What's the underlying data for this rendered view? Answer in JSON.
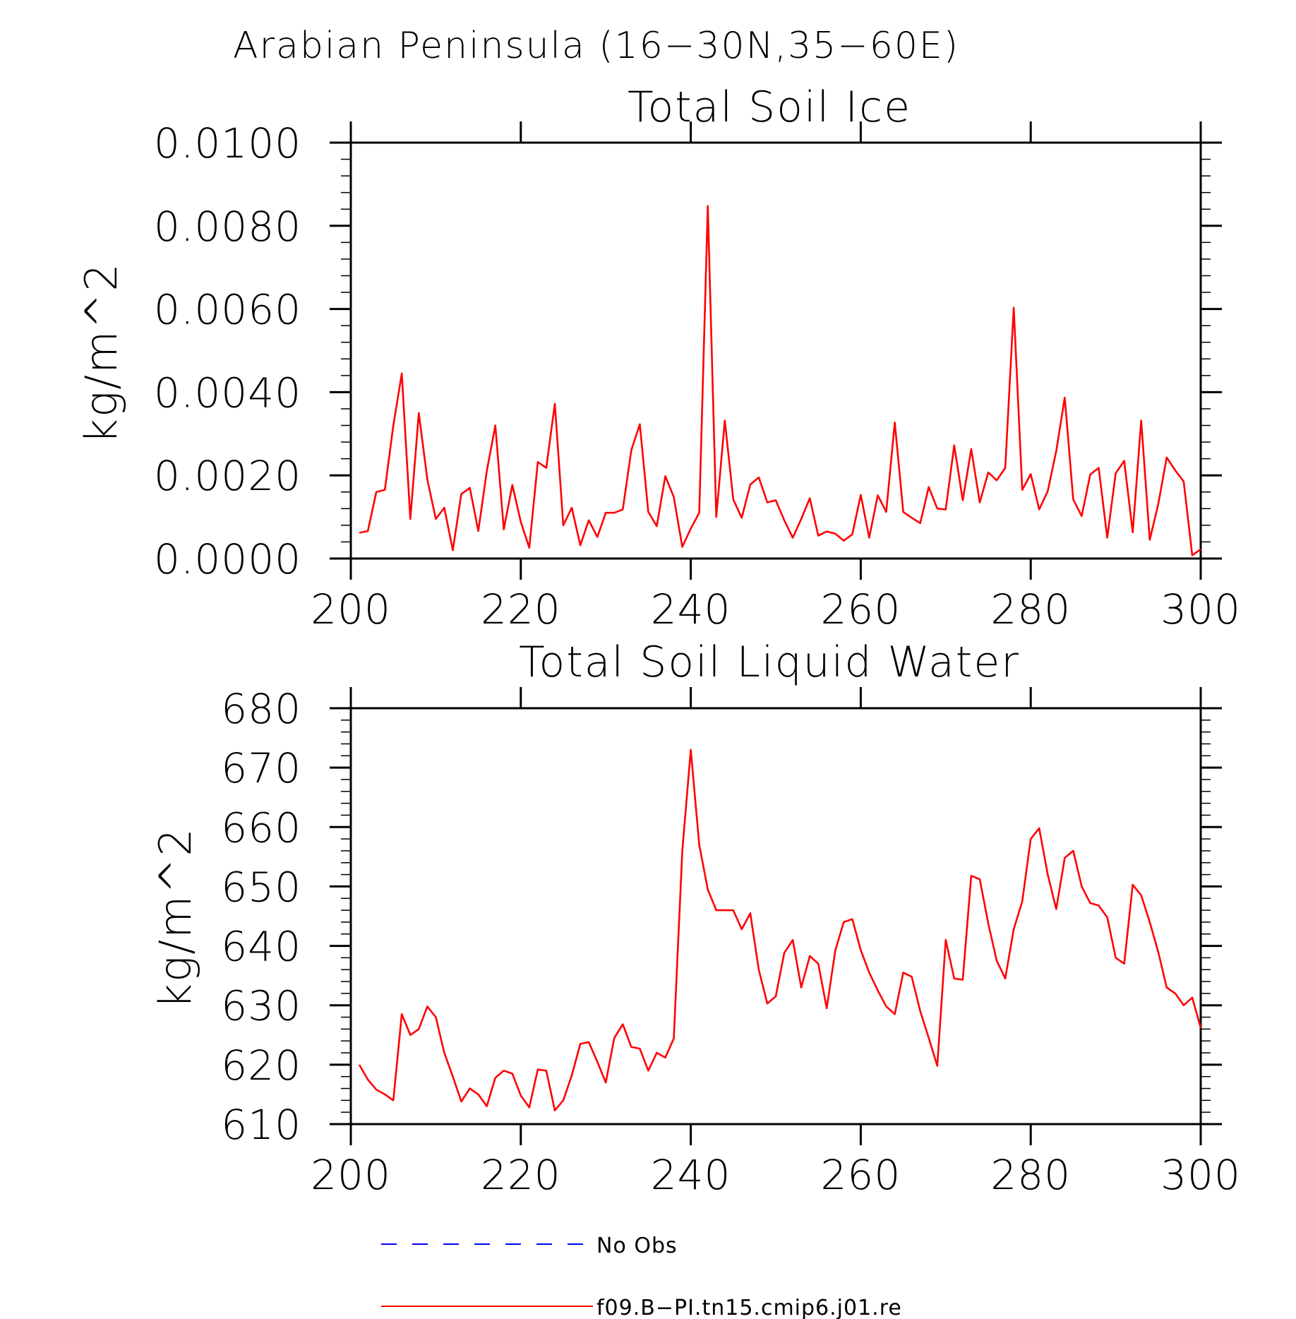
{
  "figure_title": "Arabian Peninsula (16−30N,35−60E)",
  "chart_data": [
    {
      "type": "line",
      "title": "Total Soil Ice",
      "xlabel": "",
      "ylabel": "kg/m^2",
      "xlim": [
        200,
        300
      ],
      "ylim": [
        0,
        0.01
      ],
      "xticks": [
        200,
        220,
        240,
        260,
        280,
        300
      ],
      "xtick_labels": [
        "200",
        "220",
        "240",
        "260",
        "280",
        "300"
      ],
      "yticks": [
        0,
        0.002,
        0.004,
        0.006,
        0.008,
        0.01
      ],
      "ytick_labels": [
        "0.0000",
        "0.0020",
        "0.0040",
        "0.0060",
        "0.0080",
        "0.0100"
      ],
      "grid": false,
      "series": [
        {
          "name": "f09.B−PI.tn15.cmip6.j01.re",
          "color": "#ff0000",
          "x": [
            201,
            202,
            203,
            204,
            205,
            206,
            207,
            208,
            209,
            210,
            211,
            212,
            213,
            214,
            215,
            216,
            217,
            218,
            219,
            220,
            221,
            222,
            223,
            224,
            225,
            226,
            227,
            228,
            229,
            230,
            231,
            232,
            233,
            234,
            235,
            236,
            237,
            238,
            239,
            240,
            241,
            242,
            243,
            244,
            245,
            246,
            247,
            248,
            249,
            250,
            251,
            252,
            253,
            254,
            255,
            256,
            257,
            258,
            259,
            260,
            261,
            262,
            263,
            264,
            265,
            266,
            267,
            268,
            269,
            270,
            271,
            272,
            273,
            274,
            275,
            276,
            277,
            278,
            279,
            280,
            281,
            282,
            283,
            284,
            285,
            286,
            287,
            288,
            289,
            290,
            291,
            292,
            293,
            294,
            295,
            296,
            297,
            298,
            299,
            300
          ],
          "values": [
            0.00062,
            0.00066,
            0.0016,
            0.00165,
            0.0032,
            0.00445,
            0.00095,
            0.0035,
            0.0019,
            0.00095,
            0.00122,
            0.0002,
            0.00155,
            0.0017,
            0.00066,
            0.0021,
            0.0032,
            0.0007,
            0.00177,
            0.00088,
            0.00026,
            0.00232,
            0.00218,
            0.00372,
            0.0008,
            0.00122,
            0.00032,
            0.00092,
            0.00052,
            0.0011,
            0.0011,
            0.00118,
            0.0026,
            0.00323,
            0.00112,
            0.00078,
            0.00198,
            0.00148,
            0.00028,
            0.00072,
            0.0011,
            0.00848,
            0.001,
            0.00332,
            0.00142,
            0.00098,
            0.00178,
            0.00195,
            0.00135,
            0.0014,
            0.00092,
            0.0005,
            0.00095,
            0.00145,
            0.00055,
            0.00065,
            0.0006,
            0.00043,
            0.00058,
            0.00153,
            0.0005,
            0.00152,
            0.00112,
            0.00327,
            0.00112,
            0.00098,
            0.00085,
            0.00172,
            0.0012,
            0.00118,
            0.00272,
            0.0014,
            0.00263,
            0.00135,
            0.00207,
            0.00188,
            0.00218,
            0.00603,
            0.00165,
            0.00203,
            0.00118,
            0.00162,
            0.00258,
            0.00387,
            0.00142,
            0.00102,
            0.00202,
            0.00218,
            0.0005,
            0.00205,
            0.00235,
            0.00063,
            0.00332,
            0.00045,
            0.0013,
            0.00243,
            0.00212,
            0.00185,
            8e-05,
            0.00022
          ]
        }
      ]
    },
    {
      "type": "line",
      "title": "Total Soil Liquid Water",
      "xlabel": "",
      "ylabel": "kg/m^2",
      "xlim": [
        200,
        300
      ],
      "ylim": [
        610,
        680
      ],
      "xticks": [
        200,
        220,
        240,
        260,
        280,
        300
      ],
      "xtick_labels": [
        "200",
        "220",
        "240",
        "260",
        "280",
        "300"
      ],
      "yticks": [
        610,
        620,
        630,
        640,
        650,
        660,
        670,
        680
      ],
      "ytick_labels": [
        "610",
        "620",
        "630",
        "640",
        "650",
        "660",
        "670",
        "680"
      ],
      "grid": false,
      "series": [
        {
          "name": "f09.B−PI.tn15.cmip6.j01.re",
          "color": "#ff0000",
          "x": [
            201,
            202,
            203,
            204,
            205,
            206,
            207,
            208,
            209,
            210,
            211,
            212,
            213,
            214,
            215,
            216,
            217,
            218,
            219,
            220,
            221,
            222,
            223,
            224,
            225,
            226,
            227,
            228,
            229,
            230,
            231,
            232,
            233,
            234,
            235,
            236,
            237,
            238,
            239,
            240,
            241,
            242,
            243,
            244,
            245,
            246,
            247,
            248,
            249,
            250,
            251,
            252,
            253,
            254,
            255,
            256,
            257,
            258,
            259,
            260,
            261,
            262,
            263,
            264,
            265,
            266,
            267,
            268,
            269,
            270,
            271,
            272,
            273,
            274,
            275,
            276,
            277,
            278,
            279,
            280,
            281,
            282,
            283,
            284,
            285,
            286,
            287,
            288,
            289,
            290,
            291,
            292,
            293,
            294,
            295,
            296,
            297,
            298,
            299,
            300
          ],
          "values": [
            620.0,
            617.5,
            615.8,
            615.0,
            614.0,
            628.5,
            625.0,
            626.0,
            629.8,
            628.0,
            622.0,
            618.0,
            613.8,
            616.0,
            615.0,
            613.0,
            617.8,
            619.0,
            618.5,
            614.8,
            612.8,
            619.2,
            619.0,
            612.3,
            614.0,
            618.2,
            623.5,
            623.8,
            620.5,
            617.0,
            624.5,
            626.8,
            623.0,
            622.7,
            619.0,
            622.0,
            621.2,
            624.4,
            656.0,
            673.0,
            657.0,
            649.5,
            646.0,
            646.0,
            646.0,
            642.8,
            645.5,
            636.0,
            630.3,
            631.5,
            638.8,
            641.0,
            633.0,
            638.3,
            637.0,
            629.5,
            639.2,
            644.0,
            644.5,
            639.3,
            635.5,
            632.5,
            629.8,
            628.5,
            635.5,
            634.8,
            629.0,
            624.5,
            619.8,
            641.0,
            634.5,
            634.3,
            651.8,
            651.2,
            643.8,
            637.5,
            634.5,
            642.8,
            647.5,
            658.0,
            659.8,
            652.0,
            646.2,
            654.8,
            656.0,
            650.0,
            647.2,
            646.8,
            644.8,
            638.0,
            637.0,
            650.3,
            648.5,
            644.0,
            639.0,
            633.0,
            632.0,
            630.0,
            631.3,
            626.2
          ]
        }
      ]
    }
  ],
  "legend": [
    {
      "label": "No Obs",
      "color": "#0000ff",
      "dash": "dashed"
    },
    {
      "label": "f09.B−PI.tn15.cmip6.j01.re",
      "color": "#ff0000",
      "dash": "solid"
    }
  ]
}
